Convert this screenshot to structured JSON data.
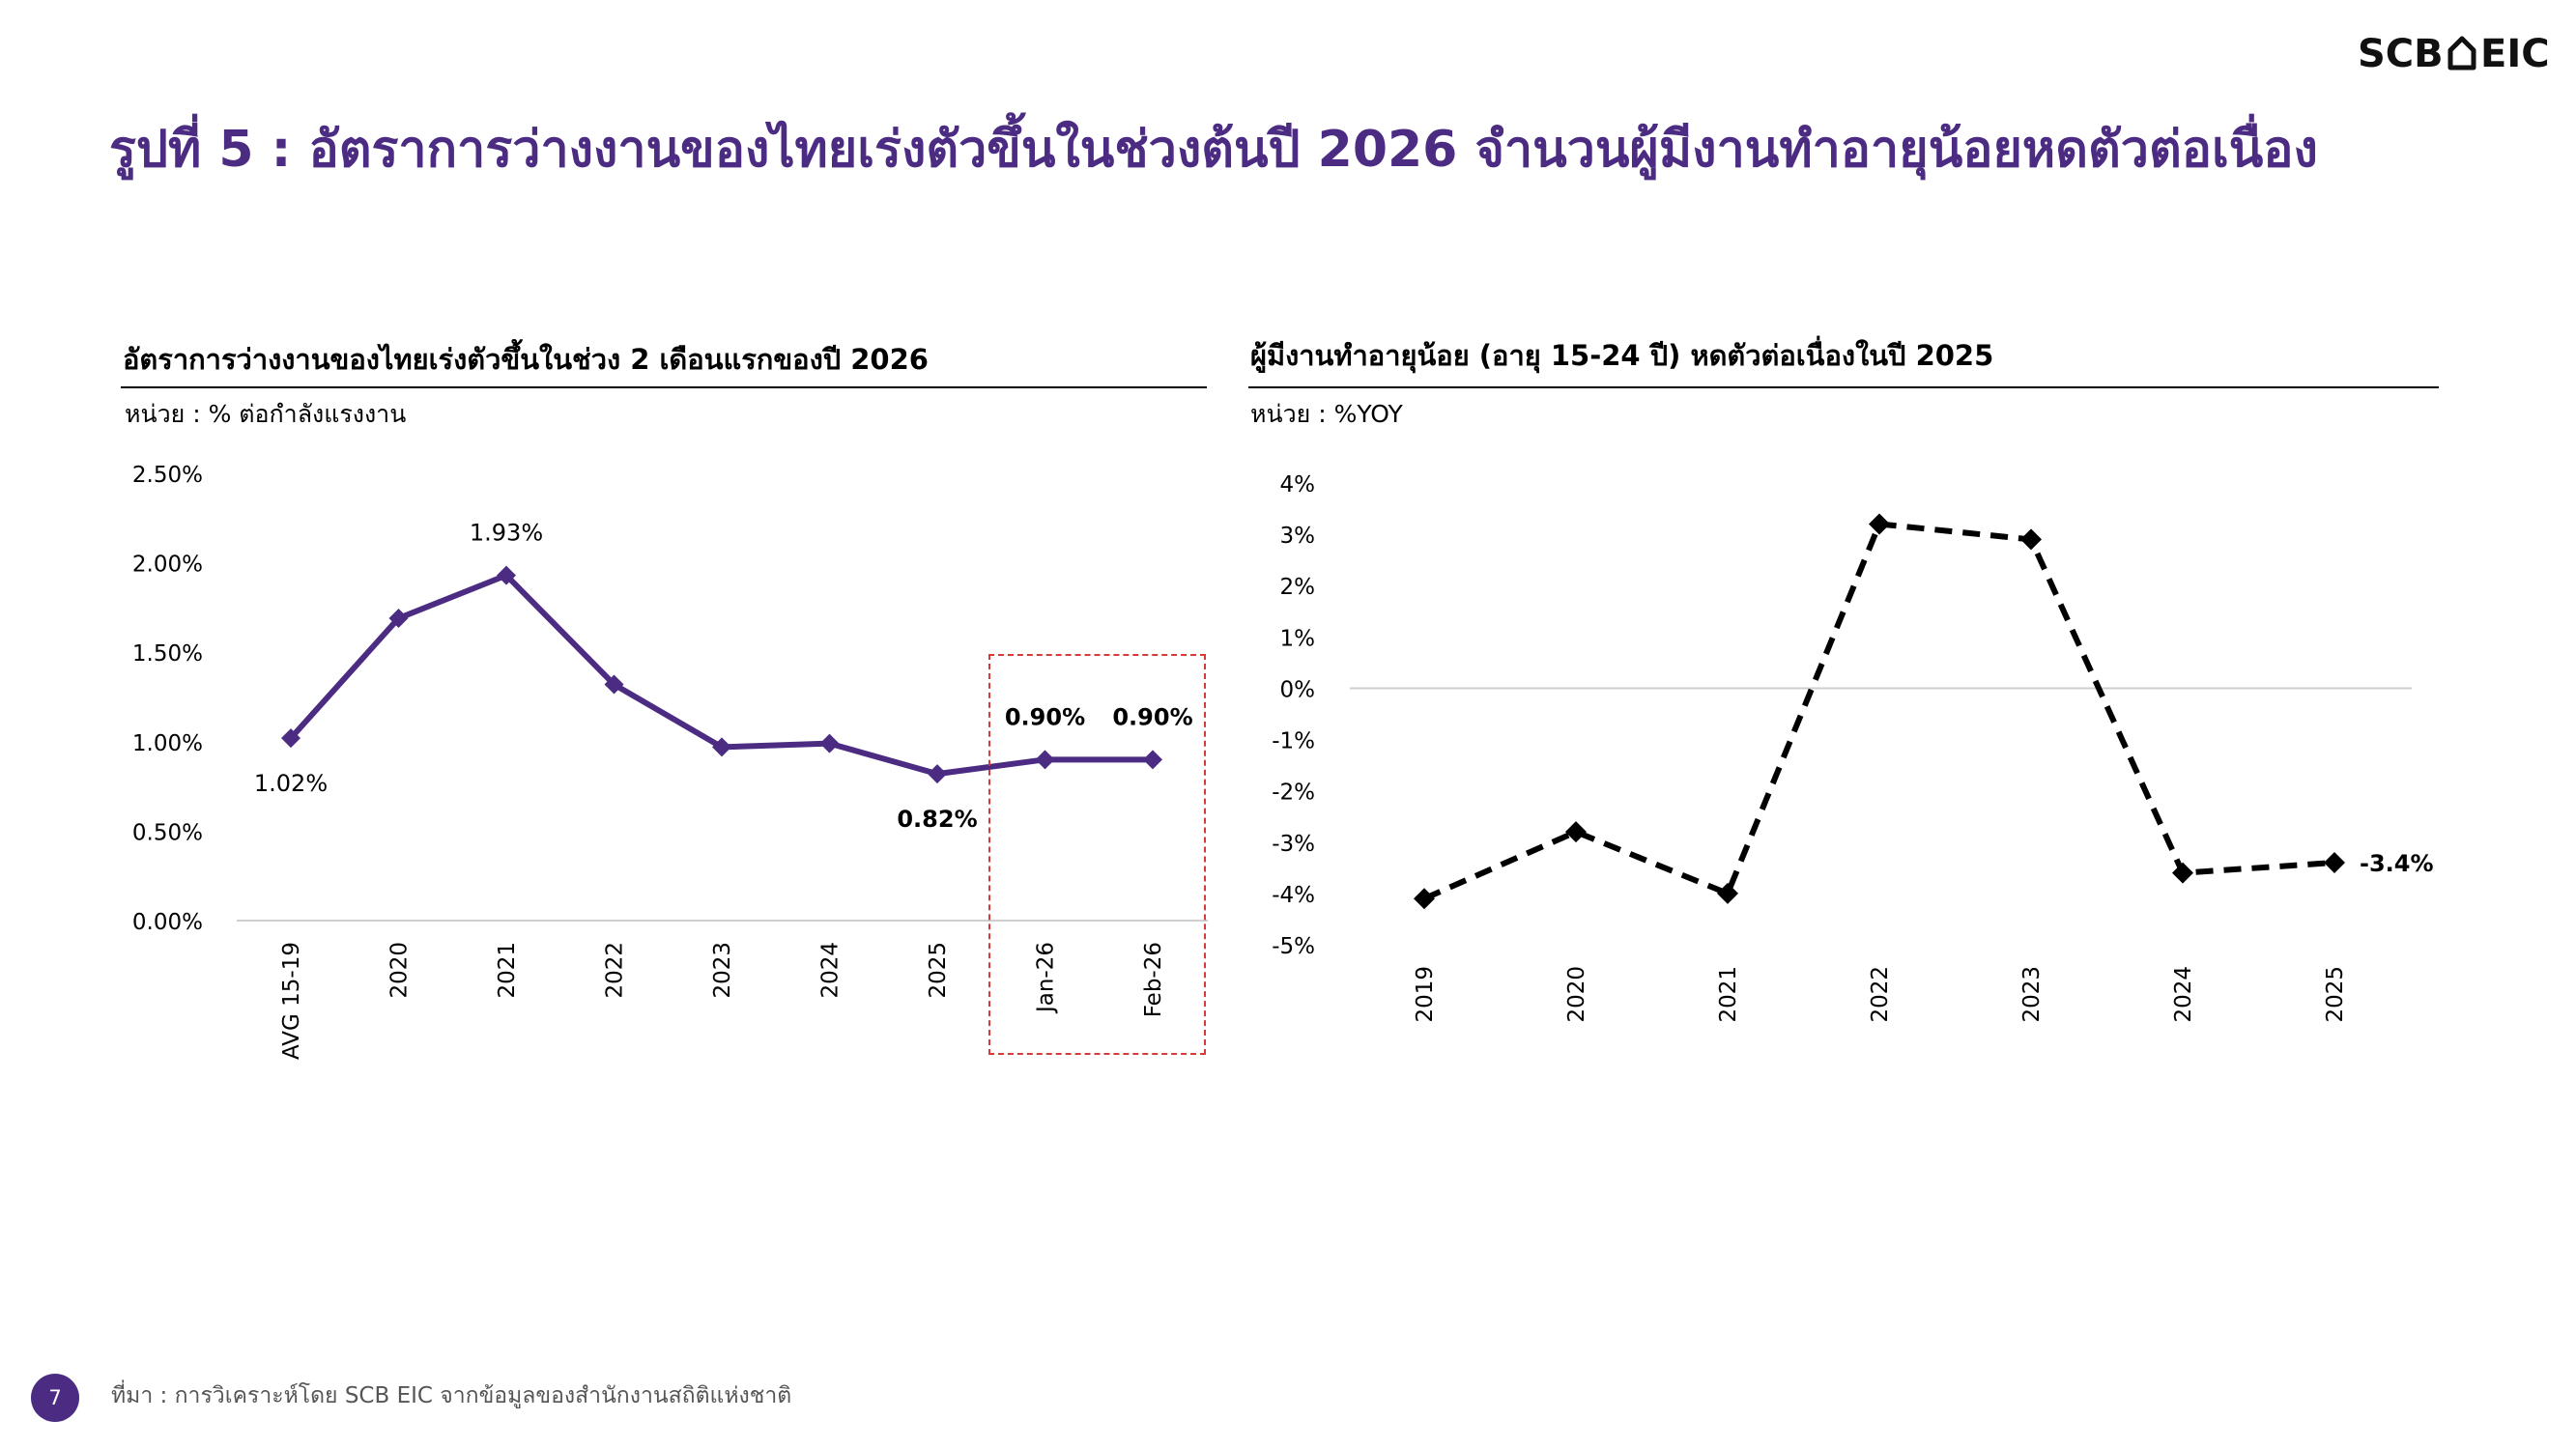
{
  "header": {
    "logo_text": "SCB⌂EIC"
  },
  "page_title": "รูปที่ 5 : อัตราการว่างงานของไทยเร่งตัวขึ้นในช่วงต้นปี 2026 จำนวนผู้มีงานทำอายุน้อยหดตัวต่อเนื่อง",
  "footer": {
    "page_number": "7",
    "source": "ที่มา : การวิเคราะห์โดย SCB EIC จากข้อมูลของสำนักงานสถิติแห่งชาติ"
  },
  "chart_data": [
    {
      "type": "line",
      "title": "อัตราการว่างงานของไทยเร่งตัวขึ้นในช่วง 2 เดือนแรกของปี 2026",
      "unit": "หน่วย : % ต่อกำลังแรงงาน",
      "categories": [
        "AVG 15-19",
        "2020",
        "2021",
        "2022",
        "2023",
        "2024",
        "2025",
        "Jan-26",
        "Feb-26"
      ],
      "values": [
        1.02,
        1.69,
        1.93,
        1.32,
        0.97,
        0.99,
        0.82,
        0.9,
        0.9
      ],
      "ylim": [
        0,
        2.5
      ],
      "yticks": [
        "0.00%",
        "0.50%",
        "1.00%",
        "1.50%",
        "2.00%",
        "2.50%"
      ],
      "data_labels": [
        {
          "index": 0,
          "text": "1.02%",
          "position": "below",
          "bold": false
        },
        {
          "index": 2,
          "text": "1.93%",
          "position": "above",
          "bold": false
        },
        {
          "index": 6,
          "text": "0.82%",
          "position": "below",
          "bold": true
        },
        {
          "index": 7,
          "text": "0.90%",
          "position": "above",
          "bold": true
        },
        {
          "index": 8,
          "text": "0.90%",
          "position": "above",
          "bold": true
        }
      ],
      "highlight_range": [
        "Jan-26",
        "Feb-26"
      ],
      "line_color": "#4b2c82",
      "highlight_color": "#d63b3b",
      "marker": "diamond",
      "line_style": "solid"
    },
    {
      "type": "line",
      "title": "ผู้มีงานทำอายุน้อย (อายุ 15-24 ปี) หดตัวต่อเนื่องในปี 2025",
      "unit": "หน่วย : %YOY",
      "categories": [
        "2019",
        "2020",
        "2021",
        "2022",
        "2023",
        "2024",
        "2025"
      ],
      "values": [
        -4.1,
        -2.8,
        -4.0,
        3.2,
        2.9,
        -3.6,
        -3.4
      ],
      "ylim": [
        -5,
        4
      ],
      "yticks": [
        "-5%",
        "-4%",
        "-3%",
        "-2%",
        "-1%",
        "0%",
        "1%",
        "2%",
        "3%",
        "4%"
      ],
      "data_labels": [
        {
          "index": 6,
          "text": "-3.4%",
          "position": "right",
          "bold": true
        }
      ],
      "line_color": "#000000",
      "marker": "diamond",
      "line_style": "dashed"
    }
  ]
}
